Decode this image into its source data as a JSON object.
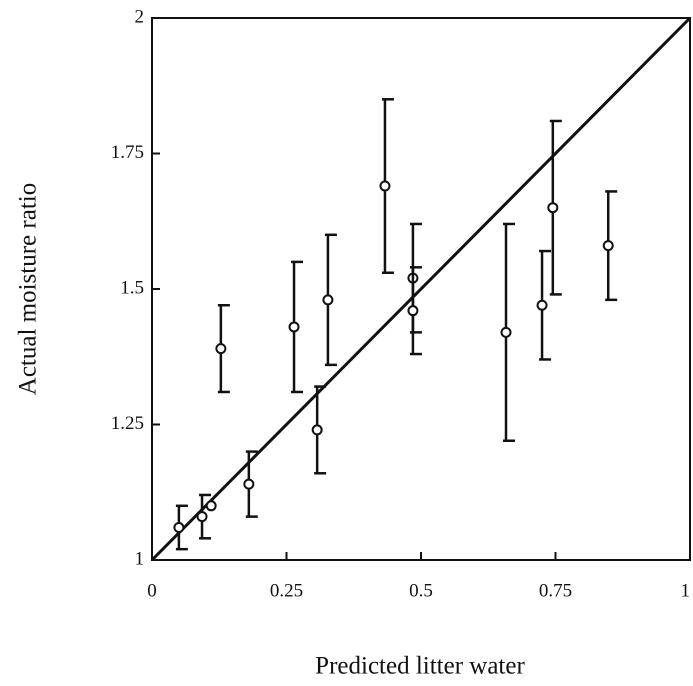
{
  "chart_data": {
    "type": "scatter",
    "x_label": "Predicted litter water",
    "y_label": "Actual moisture ratio",
    "xlim": [
      0,
      1
    ],
    "ylim": [
      1,
      2
    ],
    "xticks": [
      0,
      0.25,
      0.5,
      0.75,
      1
    ],
    "yticks": [
      1,
      1.25,
      1.5,
      1.75,
      2
    ],
    "color": "#111111",
    "reference_line": {
      "x": [
        0,
        1
      ],
      "y": [
        1,
        2
      ]
    },
    "x": [
      0.05,
      0.093,
      0.11,
      0.128,
      0.18,
      0.264,
      0.307,
      0.327,
      0.433,
      0.485,
      0.485,
      0.658,
      0.725,
      0.745,
      0.848
    ],
    "values": [
      1.06,
      1.08,
      1.1,
      1.39,
      1.14,
      1.43,
      1.24,
      1.48,
      1.69,
      1.52,
      1.46,
      1.42,
      1.47,
      1.65,
      1.58
    ],
    "errors": [
      0.04,
      0.04,
      null,
      0.08,
      0.06,
      0.12,
      0.08,
      0.12,
      0.16,
      0.1,
      0.08,
      0.2,
      0.1,
      0.16,
      0.1
    ]
  }
}
